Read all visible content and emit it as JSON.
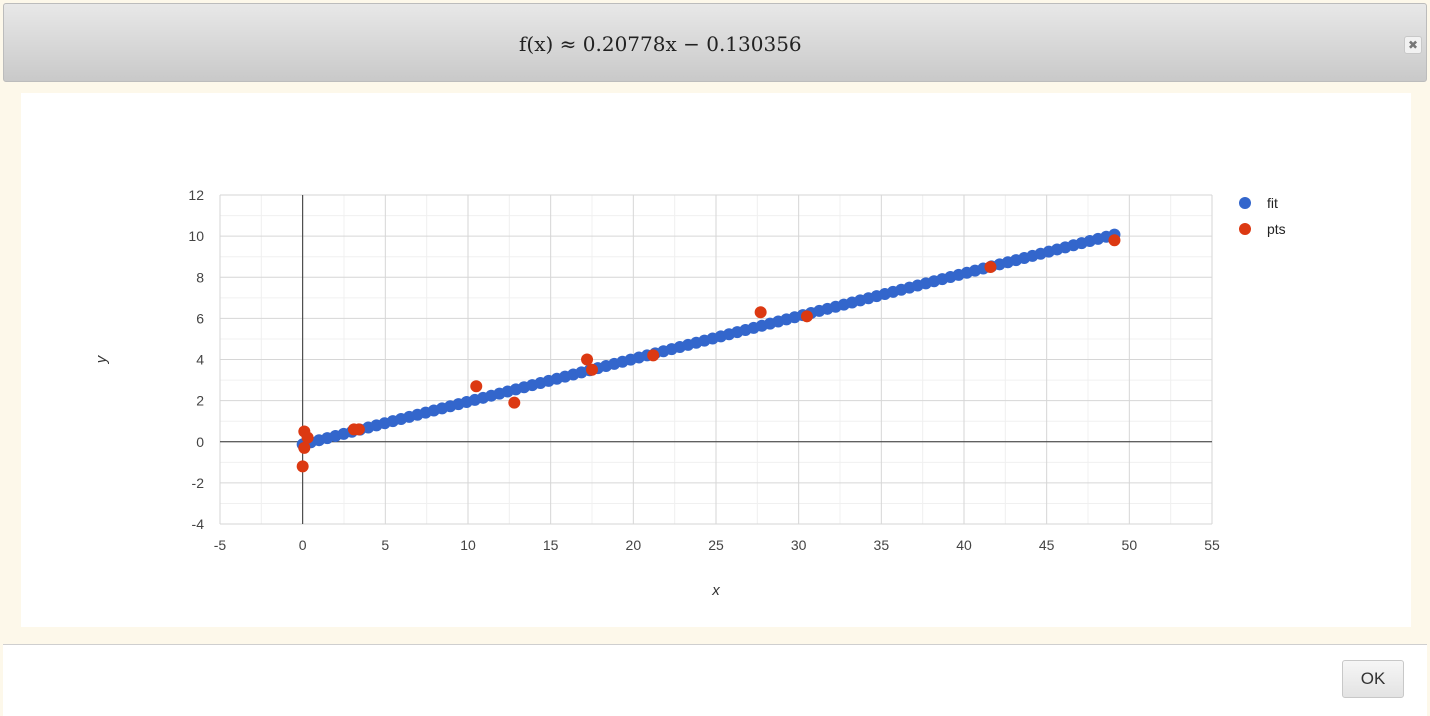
{
  "dialog": {
    "title": "f(x) ≈ 0.20778x − 0.130356",
    "close_icon": "close-icon",
    "ok_label": "OK"
  },
  "chart_data": {
    "type": "scatter",
    "title": "",
    "xlabel": "x",
    "ylabel": "y",
    "xlim": [
      -5,
      55
    ],
    "ylim": [
      -4,
      12
    ],
    "xticks": [
      -5,
      0,
      5,
      10,
      15,
      20,
      25,
      30,
      35,
      40,
      45,
      50,
      55
    ],
    "yticks": [
      -4,
      -2,
      0,
      2,
      4,
      6,
      8,
      10,
      12
    ],
    "grid": true,
    "legend_position": "right",
    "fit_line": {
      "slope": 0.20778,
      "intercept": -0.130356,
      "x_start": 0,
      "x_end": 49.1,
      "samples": 100
    },
    "series": [
      {
        "name": "fit",
        "color": "#3366cc",
        "points": "sampled from fit_line"
      },
      {
        "name": "pts",
        "color": "#dc3912",
        "points": [
          [
            0.0,
            -1.2
          ],
          [
            0.1,
            -0.3
          ],
          [
            0.1,
            0.5
          ],
          [
            0.3,
            0.2
          ],
          [
            3.1,
            0.6
          ],
          [
            3.4,
            0.6
          ],
          [
            10.5,
            2.7
          ],
          [
            12.8,
            1.9
          ],
          [
            17.2,
            4.0
          ],
          [
            17.5,
            3.5
          ],
          [
            21.2,
            4.2
          ],
          [
            27.7,
            6.3
          ],
          [
            30.5,
            6.1
          ],
          [
            41.6,
            8.5
          ],
          [
            49.1,
            9.8
          ]
        ]
      }
    ]
  }
}
